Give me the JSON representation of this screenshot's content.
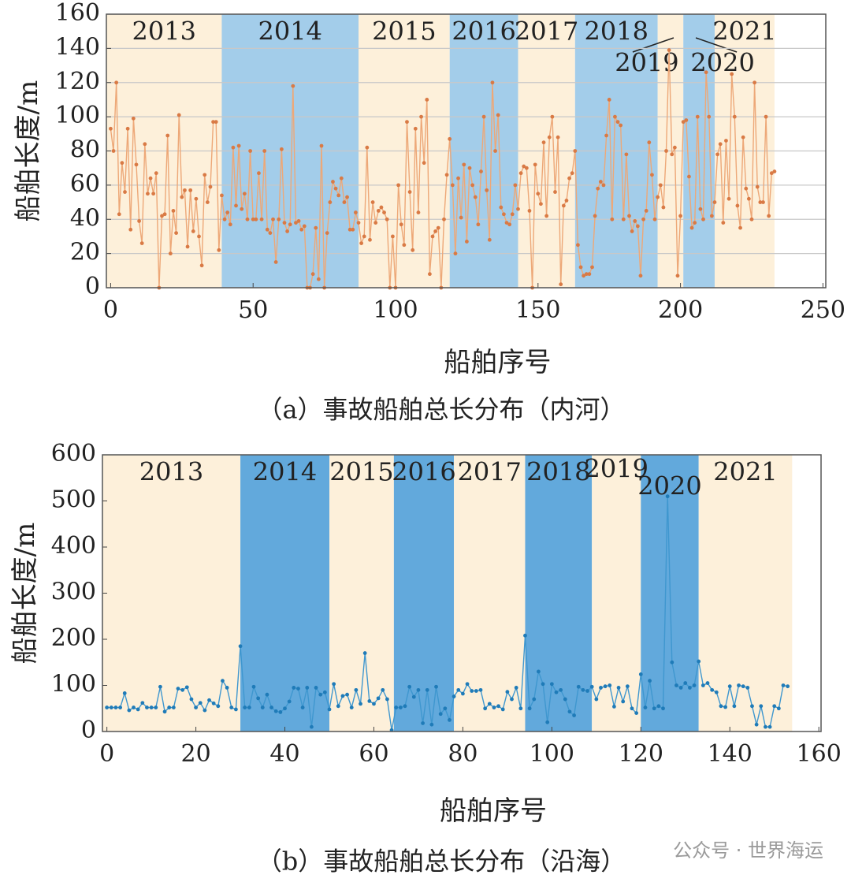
{
  "chart_data": [
    {
      "type": "line",
      "caption": "（a）事故船舶总长分布（内河）",
      "x_label": "船舶序号",
      "y_label": "船舶长度/m",
      "line_color": "#eda878",
      "marker_color": "#d97a45",
      "xlim": [
        -1.5,
        251
      ],
      "xticks": [
        0,
        50,
        100,
        150,
        200,
        250
      ],
      "ylim": [
        0,
        160
      ],
      "yticks": [
        0,
        20,
        40,
        60,
        80,
        100,
        120,
        140,
        160
      ],
      "grid": true,
      "bands": [
        {
          "label": "2013",
          "start": -1.5,
          "end": 39,
          "color": "#fdf0da"
        },
        {
          "label": "2014",
          "start": 39,
          "end": 87,
          "color": "#a3cdea"
        },
        {
          "label": "2015",
          "start": 87,
          "end": 119,
          "color": "#fdf0da"
        },
        {
          "label": "2016",
          "start": 119,
          "end": 143,
          "color": "#a3cdea"
        },
        {
          "label": "2017",
          "start": 143,
          "end": 163,
          "color": "#fdf0da"
        },
        {
          "label": "2018",
          "start": 163,
          "end": 192,
          "color": "#a3cdea"
        },
        {
          "label": "2019",
          "start": 192,
          "end": 201,
          "color": "#fdf0da"
        },
        {
          "label": "2020",
          "start": 201,
          "end": 212,
          "color": "#a3cdea"
        },
        {
          "label": "2021",
          "start": 212,
          "end": 233,
          "color": "#fdf0da"
        }
      ],
      "values": [
        93,
        80,
        120,
        43,
        73,
        56,
        93,
        34,
        99,
        72,
        39,
        26,
        84,
        55,
        64,
        55,
        67,
        0,
        42,
        43,
        89,
        20,
        45,
        32,
        101,
        53,
        57,
        24,
        57,
        33,
        52,
        30,
        13,
        66,
        50,
        59,
        97,
        97,
        22,
        54,
        40,
        44,
        37,
        82,
        48,
        83,
        46,
        55,
        40,
        80,
        40,
        40,
        67,
        40,
        80,
        34,
        32,
        40,
        15,
        40,
        81,
        38,
        33,
        37,
        118,
        38,
        39,
        34,
        36,
        0,
        0,
        8,
        35,
        5,
        83,
        0,
        32,
        50,
        62,
        58,
        54,
        64,
        50,
        53,
        34,
        34,
        44,
        38,
        26,
        30,
        82,
        28,
        50,
        38,
        45,
        47,
        44,
        40,
        0,
        30,
        0,
        60,
        37,
        25,
        97,
        56,
        22,
        93,
        44,
        100,
        73,
        110,
        8,
        30,
        33,
        35,
        0,
        40,
        66,
        87,
        60,
        20,
        64,
        41,
        72,
        27,
        70,
        60,
        53,
        37,
        68,
        100,
        57,
        28,
        120,
        80,
        101,
        47,
        43,
        38,
        37,
        43,
        60,
        46,
        67,
        71,
        70,
        45,
        0,
        72,
        55,
        49,
        85,
        42,
        88,
        100,
        56,
        88,
        2,
        48,
        51,
        64,
        67,
        80,
        25,
        12,
        7,
        8,
        8,
        12,
        42,
        58,
        62,
        60,
        89,
        110,
        40,
        100,
        97,
        95,
        40,
        78,
        42,
        33,
        39,
        36,
        7,
        40,
        45,
        85,
        66,
        40,
        53,
        60,
        47,
        80,
        139,
        78,
        82,
        7,
        42,
        97,
        98,
        65,
        35,
        38,
        100,
        46,
        40,
        126,
        100,
        42,
        50,
        78,
        84,
        38,
        86,
        52,
        125,
        100,
        48,
        35,
        88,
        58,
        52,
        40,
        120,
        59,
        50,
        50,
        100,
        42,
        67,
        68
      ]
    },
    {
      "type": "line",
      "caption": "（b）事故船舶总长分布（沿海）",
      "x_label": "船舶序号",
      "y_label": "船舶长度/m",
      "line_color": "#3f97cf",
      "marker_color": "#1f7bb8",
      "xlim": [
        -1,
        160.5
      ],
      "xticks": [
        0,
        20,
        40,
        60,
        80,
        100,
        120,
        140,
        160
      ],
      "ylim": [
        0,
        600
      ],
      "yticks": [
        0,
        100,
        200,
        300,
        400,
        500,
        600
      ],
      "grid": false,
      "bands": [
        {
          "label": "2013",
          "start": -1,
          "end": 30,
          "color": "#fdf0da"
        },
        {
          "label": "2014",
          "start": 30,
          "end": 50,
          "color": "#62a9dc"
        },
        {
          "label": "2015",
          "start": 50,
          "end": 64.5,
          "color": "#fdf0da"
        },
        {
          "label": "2016",
          "start": 64.5,
          "end": 78,
          "color": "#62a9dc"
        },
        {
          "label": "2017",
          "start": 78,
          "end": 94,
          "color": "#fdf0da"
        },
        {
          "label": "2018",
          "start": 94,
          "end": 109,
          "color": "#62a9dc"
        },
        {
          "label": "2019",
          "start": 109,
          "end": 120,
          "color": "#fdf0da"
        },
        {
          "label": "2020",
          "start": 120,
          "end": 133,
          "color": "#62a9dc"
        },
        {
          "label": "2021",
          "start": 133,
          "end": 154,
          "color": "#fdf0da"
        }
      ],
      "values": [
        52,
        52,
        52,
        52,
        83,
        46,
        52,
        48,
        62,
        52,
        52,
        52,
        97,
        43,
        52,
        52,
        93,
        90,
        96,
        70,
        52,
        62,
        46,
        68,
        61,
        55,
        110,
        95,
        52,
        48,
        185,
        52,
        52,
        97,
        72,
        52,
        80,
        52,
        44,
        42,
        50,
        65,
        95,
        93,
        52,
        95,
        10,
        95,
        80,
        85,
        48,
        103,
        55,
        77,
        80,
        52,
        90,
        60,
        170,
        66,
        60,
        72,
        90,
        70,
        3,
        52,
        52,
        55,
        97,
        75,
        90,
        18,
        90,
        15,
        97,
        38,
        50,
        25,
        76,
        90,
        82,
        103,
        88,
        88,
        90,
        50,
        60,
        52,
        55,
        48,
        86,
        70,
        95,
        50,
        208,
        50,
        70,
        130,
        103,
        20,
        103,
        85,
        90,
        70,
        43,
        35,
        97,
        90,
        88,
        97,
        70,
        95,
        98,
        100,
        54,
        95,
        65,
        98,
        50,
        40,
        124,
        52,
        110,
        50,
        55,
        50,
        510,
        150,
        100,
        95,
        105,
        95,
        100,
        152,
        100,
        105,
        90,
        85,
        55,
        53,
        98,
        55,
        100,
        98,
        95,
        55,
        15,
        55,
        10,
        10,
        55,
        50,
        100,
        98
      ]
    }
  ],
  "watermark": "公众号 · 世界海运"
}
